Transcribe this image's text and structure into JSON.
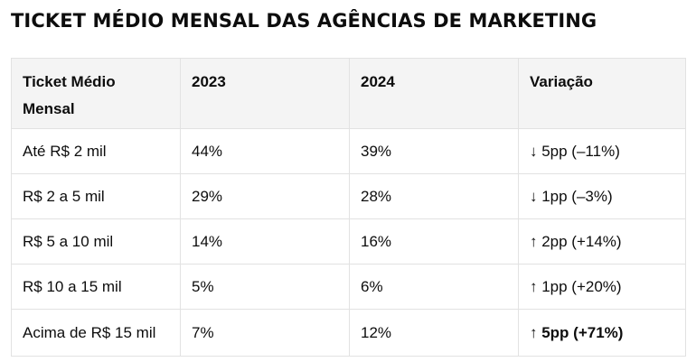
{
  "title": "TICKET MÉDIO MENSAL DAS AGÊNCIAS DE MARKETING",
  "table": {
    "headers": [
      "Ticket Médio Mensal",
      "2023",
      "2024",
      "Variação"
    ],
    "rows": [
      [
        "Até R$ 2 mil",
        "44%",
        "39%",
        "↓ 5pp (–11%)"
      ],
      [
        "R$ 2 a 5 mil",
        "29%",
        "28%",
        "↓ 1pp (–3%)"
      ],
      [
        "R$ 5 a 10 mil",
        "14%",
        "16%",
        "↑ 2pp (+14%)"
      ],
      [
        "R$ 10 a 15 mil",
        "5%",
        "6%",
        "↑ 1pp (+20%)"
      ],
      [
        "Acima de R$ 15 mil",
        "7%",
        "12%",
        "↑ 5pp (+71%)"
      ]
    ]
  }
}
